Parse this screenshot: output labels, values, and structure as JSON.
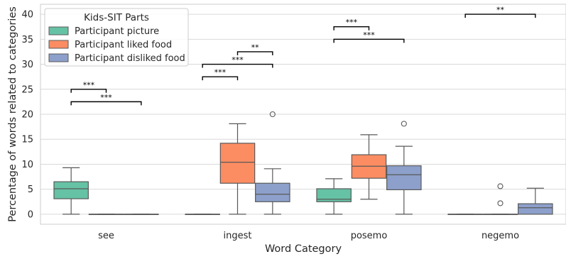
{
  "chart_data": {
    "type": "box",
    "xlabel": "Word Category",
    "ylabel": "Percentage of words related to categories",
    "ylim": [
      -2,
      42
    ],
    "yticks": [
      0,
      5,
      10,
      15,
      20,
      25,
      30,
      35,
      40
    ],
    "grid": "horizontal",
    "categories": [
      "see",
      "ingest",
      "posemo",
      "negemo"
    ],
    "legend": {
      "title": "Kids-SIT Parts",
      "placement": "top-left",
      "entries": [
        "Participant picture",
        "Participant liked food",
        "Participant disliked food"
      ]
    },
    "series": [
      {
        "name": "Participant picture",
        "color": "#66c2a5",
        "boxes": [
          {
            "category": "see",
            "min": 0,
            "q1": 3.1,
            "median": 5.1,
            "q3": 6.5,
            "max": 9.3,
            "outliers": []
          },
          {
            "category": "ingest",
            "min": 0,
            "q1": 0,
            "median": 0,
            "q3": 0,
            "max": 0,
            "outliers": []
          },
          {
            "category": "posemo",
            "min": 0,
            "q1": 2.5,
            "median": 3.0,
            "q3": 5.1,
            "max": 7.1,
            "outliers": []
          },
          {
            "category": "negemo",
            "min": 0,
            "q1": 0,
            "median": 0,
            "q3": 0,
            "max": 0,
            "outliers": []
          }
        ]
      },
      {
        "name": "Participant liked food",
        "color": "#fc8d62",
        "boxes": [
          {
            "category": "see",
            "min": 0,
            "q1": 0,
            "median": 0,
            "q3": 0,
            "max": 0,
            "outliers": []
          },
          {
            "category": "ingest",
            "min": 0,
            "q1": 6.2,
            "median": 10.4,
            "q3": 14.2,
            "max": 18.1,
            "outliers": []
          },
          {
            "category": "posemo",
            "min": 3.0,
            "q1": 7.2,
            "median": 9.6,
            "q3": 11.9,
            "max": 15.9,
            "outliers": []
          },
          {
            "category": "negemo",
            "min": 0,
            "q1": 0,
            "median": 0,
            "q3": 0,
            "max": 0,
            "outliers": [
              2.2,
              5.6
            ]
          }
        ]
      },
      {
        "name": "Participant disliked food",
        "color": "#8da0cb",
        "boxes": [
          {
            "category": "see",
            "min": 0,
            "q1": 0,
            "median": 0,
            "q3": 0,
            "max": 0,
            "outliers": []
          },
          {
            "category": "ingest",
            "min": 0,
            "q1": 2.5,
            "median": 4.0,
            "q3": 6.2,
            "max": 9.1,
            "outliers": [
              20.0
            ]
          },
          {
            "category": "posemo",
            "min": 0,
            "q1": 4.9,
            "median": 7.9,
            "q3": 9.7,
            "max": 13.6,
            "outliers": [
              18.1
            ]
          },
          {
            "category": "negemo",
            "min": 0,
            "q1": 0,
            "median": 1.3,
            "q3": 2.1,
            "max": 5.2,
            "outliers": []
          }
        ]
      }
    ],
    "annotations": [
      {
        "category": "see",
        "from": 0,
        "to": 1,
        "y": 25.0,
        "label": "***"
      },
      {
        "category": "see",
        "from": 0,
        "to": 2,
        "y": 22.5,
        "label": "***"
      },
      {
        "category": "ingest",
        "from": 1,
        "to": 2,
        "y": 32.5,
        "label": "**"
      },
      {
        "category": "ingest",
        "from": 0,
        "to": 2,
        "y": 30.0,
        "label": "***"
      },
      {
        "category": "ingest",
        "from": 0,
        "to": 1,
        "y": 27.5,
        "label": "***"
      },
      {
        "category": "posemo",
        "from": 0,
        "to": 1,
        "y": 37.5,
        "label": "***"
      },
      {
        "category": "posemo",
        "from": 0,
        "to": 2,
        "y": 35.0,
        "label": "***"
      },
      {
        "category": "negemo",
        "from": 0,
        "to": 2,
        "y": 40.0,
        "label": "**"
      }
    ]
  }
}
